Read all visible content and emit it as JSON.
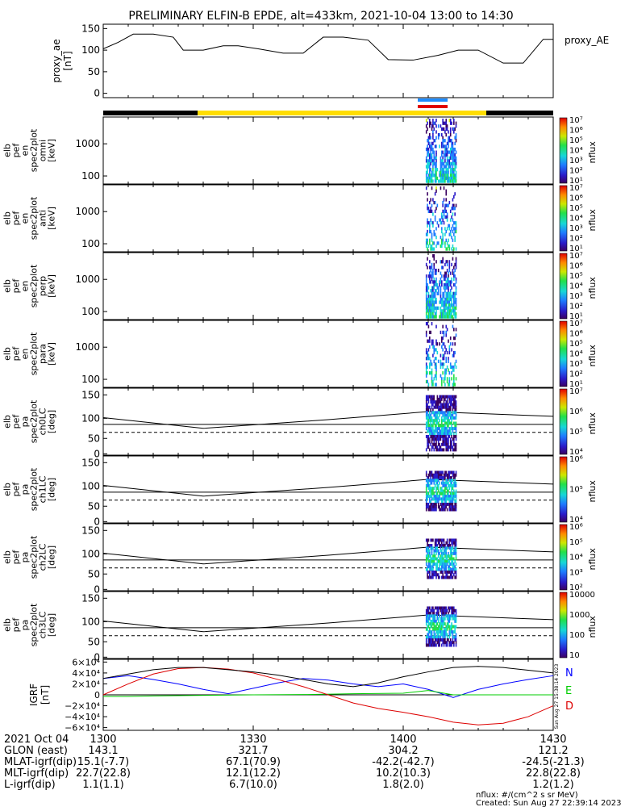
{
  "title": "PRELIMINARY ELFIN-B EPDE, alt=433km, 2021-10-04 13:00 to 14:30",
  "chart_data": {
    "type": "line",
    "x_range": [
      "13:00",
      "14:30"
    ],
    "panels": [
      {
        "id": "proxy_ae",
        "type": "line",
        "ylabel": "proxy_ae",
        "yunits": "[nT]",
        "legend": "proxy_AE",
        "yticks": [
          "150",
          "100",
          "50",
          "0"
        ],
        "ylim": [
          -10,
          160
        ],
        "x_min": [
          0,
          3,
          6,
          10,
          14,
          16,
          20,
          24,
          27,
          31,
          36,
          40,
          44,
          48,
          53,
          57,
          62,
          67,
          71,
          75,
          80,
          84,
          88,
          90
        ],
        "y": [
          103,
          118,
          137,
          137,
          130,
          100,
          100,
          110,
          110,
          103,
          93,
          93,
          130,
          130,
          123,
          78,
          77,
          88,
          100,
          100,
          70,
          70,
          125,
          125
        ],
        "color": "#000000"
      },
      {
        "id": "omni",
        "type": "heatmap",
        "ylabel": [
          "elb",
          "pef",
          "en",
          "spec2plot",
          "omni"
        ],
        "yunits": "[keV]",
        "yticks": [
          "1000",
          "100"
        ],
        "colorbar": {
          "label": "nflux",
          "ticks": [
            "10⁷",
            "10⁶",
            "10⁵",
            "10⁴",
            "10³",
            "10²",
            "10¹"
          ]
        }
      },
      {
        "id": "anti",
        "type": "heatmap",
        "ylabel": [
          "elb",
          "pef",
          "en",
          "spec2plot",
          "anti"
        ],
        "yunits": "[keV]",
        "yticks": [
          "1000",
          "100"
        ],
        "colorbar": {
          "label": "nflux",
          "ticks": [
            "10⁷",
            "10⁶",
            "10⁵",
            "10⁴",
            "10³",
            "10²",
            "10¹"
          ]
        }
      },
      {
        "id": "perp",
        "type": "heatmap",
        "ylabel": [
          "elb",
          "pef",
          "en",
          "spec2plot",
          "perp"
        ],
        "yunits": "[keV]",
        "yticks": [
          "1000",
          "100"
        ],
        "colorbar": {
          "label": "nflux",
          "ticks": [
            "10⁷",
            "10⁶",
            "10⁵",
            "10⁴",
            "10³",
            "10²",
            "10¹"
          ]
        }
      },
      {
        "id": "para",
        "type": "heatmap",
        "ylabel": [
          "elb",
          "pef",
          "en",
          "spec2plot",
          "para"
        ],
        "yunits": "[keV]",
        "yticks": [
          "1000",
          "100"
        ],
        "colorbar": {
          "label": "nflux",
          "ticks": [
            "10⁷",
            "10⁶",
            "10⁵",
            "10⁴",
            "10³",
            "10²",
            "10¹"
          ]
        }
      },
      {
        "id": "ch0LC",
        "type": "heatmap",
        "ylabel": [
          "elb",
          "pef",
          "pa",
          "spec2plot",
          "ch0LC"
        ],
        "yunits": "[deg]",
        "yticks": [
          "150",
          "100",
          "50",
          "0"
        ],
        "colorbar": {
          "label": "nflux",
          "ticks": [
            "10⁷",
            "10⁶",
            "10⁵",
            "10⁴"
          ]
        }
      },
      {
        "id": "ch1LC",
        "type": "heatmap",
        "ylabel": [
          "elb",
          "pef",
          "pa",
          "spec2plot",
          "ch1LC"
        ],
        "yunits": "[deg]",
        "yticks": [
          "150",
          "100",
          "50",
          "0"
        ],
        "colorbar": {
          "label": "nflux",
          "ticks": [
            "10⁶",
            "10⁵",
            "10⁴"
          ]
        }
      },
      {
        "id": "ch2LC",
        "type": "heatmap",
        "ylabel": [
          "elb",
          "pef",
          "pa",
          "spec2plot",
          "ch2LC"
        ],
        "yunits": "[deg]",
        "yticks": [
          "150",
          "100",
          "50",
          "0"
        ],
        "colorbar": {
          "label": "nflux",
          "ticks": [
            "10⁶",
            "10⁵",
            "10⁴",
            "10³",
            "10²"
          ]
        }
      },
      {
        "id": "ch3LC",
        "type": "heatmap",
        "ylabel": [
          "elb",
          "pef",
          "pa",
          "spec2plot",
          "ch3LC"
        ],
        "yunits": "[deg]",
        "yticks": [
          "150",
          "100",
          "50",
          "0"
        ],
        "colorbar": {
          "label": "nflux",
          "ticks": [
            "10000",
            "1000",
            "100",
            "10"
          ]
        }
      },
      {
        "id": "igrf",
        "type": "line",
        "ylabel": "IGRF",
        "yunits": "[nT]",
        "yticks": [
          "6×10⁴",
          "4×10⁴",
          "2×10⁴",
          "0",
          "−2×10⁴",
          "−4×10⁴",
          "−6×10⁴"
        ],
        "ylim": [
          -65000,
          65000
        ],
        "legend": [
          "N",
          "E",
          "D"
        ],
        "side_text": "Sun Aug 27 15:38:14 2023",
        "series": [
          {
            "name": "N",
            "color": "#0000ff",
            "x_min": [
              0,
              5,
              10,
              15,
              20,
              25,
              30,
              35,
              40,
              45,
              50,
              55,
              60,
              65,
              70,
              75,
              80,
              85,
              90
            ],
            "y": [
              30000,
              35000,
              28000,
              20000,
              10000,
              2000,
              12000,
              22000,
              30000,
              27000,
              20000,
              15000,
              20000,
              10000,
              -5000,
              10000,
              20000,
              28000,
              35000
            ]
          },
          {
            "name": "E",
            "color": "#00cc00",
            "x_min": [
              0,
              5,
              10,
              20,
              30,
              40,
              50,
              60,
              65,
              70,
              75,
              80,
              85,
              90
            ],
            "y": [
              -3000,
              -3000,
              -2000,
              -1000,
              0,
              500,
              2000,
              3000,
              8000,
              0,
              0,
              0,
              0,
              0
            ]
          },
          {
            "name": "D",
            "color": "#dd0000",
            "x_min": [
              0,
              5,
              10,
              15,
              20,
              25,
              30,
              35,
              40,
              45,
              50,
              55,
              60,
              65,
              70,
              75,
              80,
              85,
              90
            ],
            "y": [
              0,
              20000,
              38000,
              48000,
              50000,
              47000,
              40000,
              28000,
              15000,
              0,
              -15000,
              -25000,
              -32000,
              -40000,
              -50000,
              -55000,
              -52000,
              -40000,
              -20000
            ]
          },
          {
            "name": "",
            "color": "#000000",
            "x_min": [
              0,
              5,
              10,
              15,
              20,
              25,
              30,
              35,
              40,
              45,
              50,
              55,
              60,
              65,
              70,
              75,
              80,
              85,
              90
            ],
            "y": [
              30000,
              38000,
              46000,
              50000,
              50000,
              46000,
              42000,
              36000,
              28000,
              20000,
              15000,
              22000,
              33000,
              42000,
              50000,
              52000,
              50000,
              45000,
              40000
            ]
          }
        ]
      }
    ]
  },
  "footer": {
    "headers": [
      "2021 Oct 04",
      "GLON (east)",
      "MLAT-igrf(dip)",
      "MLT-igrf(dip)",
      "L-igrf(dip)"
    ],
    "ticks": [
      {
        "time": "1300",
        "glon": "143.1",
        "mlat": "15.1(-7.7)",
        "mlt": "22.7(22.8)",
        "l": "1.1(1.1)"
      },
      {
        "time": "1330",
        "glon": "321.7",
        "mlat": "67.1(70.9)",
        "mlt": "12.1(12.2)",
        "l": "6.7(10.0)"
      },
      {
        "time": "1400",
        "glon": "304.2",
        "mlat": "-42.2(-42.7)",
        "mlt": "10.2(10.3)",
        "l": "1.8(2.0)"
      },
      {
        "time": "1430",
        "glon": "121.2",
        "mlat": "-24.5(-21.3)",
        "mlt": "22.8(22.8)",
        "l": "1.2(1.2)"
      }
    ],
    "units_note": "nflux: #/(cm^2 s sr MeV)",
    "created": "Created: Sun Aug 27 22:39:14 2023"
  }
}
